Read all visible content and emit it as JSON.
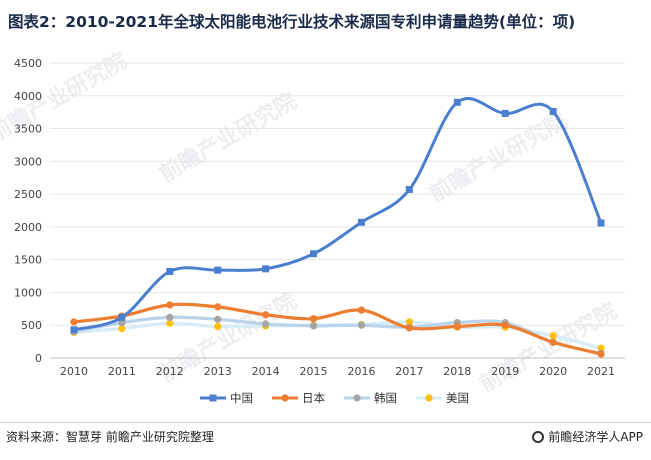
{
  "title": "图表2：2010-2021年全球太阳能电池行业技术来源国专利申请量趋势(单位：项)",
  "source": "资料来源：智慧芽 前瞻产业研究院整理",
  "brand": "前瞻经济学人APP",
  "watermark": "前瞻产业研究院",
  "chart_data": {
    "type": "line",
    "title": "图表2：2010-2021年全球太阳能电池行业技术来源国专利申请量趋势(单位：项)",
    "xlabel": "",
    "ylabel": "",
    "categories": [
      "2010",
      "2011",
      "2012",
      "2013",
      "2014",
      "2015",
      "2016",
      "2017",
      "2018",
      "2019",
      "2020",
      "2021"
    ],
    "yticks": [
      "0",
      "500",
      "1000",
      "1500",
      "2000",
      "2500",
      "3000",
      "3500",
      "4000",
      "4500"
    ],
    "ylim": [
      0,
      4500
    ],
    "grid": true,
    "legend": "bottom",
    "series": [
      {
        "name": "中国",
        "color": "#4a7fd0",
        "marker": "square",
        "values": [
          430,
          620,
          1320,
          1340,
          1360,
          1590,
          2070,
          2570,
          3900,
          3730,
          3760,
          2060
        ]
      },
      {
        "name": "日本",
        "color": "#ed7d31",
        "marker": "circle",
        "values": [
          550,
          640,
          810,
          780,
          660,
          600,
          730,
          460,
          480,
          500,
          240,
          60
        ]
      },
      {
        "name": "韩国",
        "color": "#a5a5a5",
        "marker": "circle",
        "values": [
          400,
          540,
          620,
          590,
          520,
          490,
          500,
          470,
          540,
          540,
          240,
          70
        ]
      },
      {
        "name": "美国",
        "color": "#ffc000",
        "marker": "circle",
        "values": [
          390,
          450,
          530,
          480,
          490,
          500,
          510,
          550,
          470,
          470,
          340,
          150
        ]
      }
    ]
  }
}
